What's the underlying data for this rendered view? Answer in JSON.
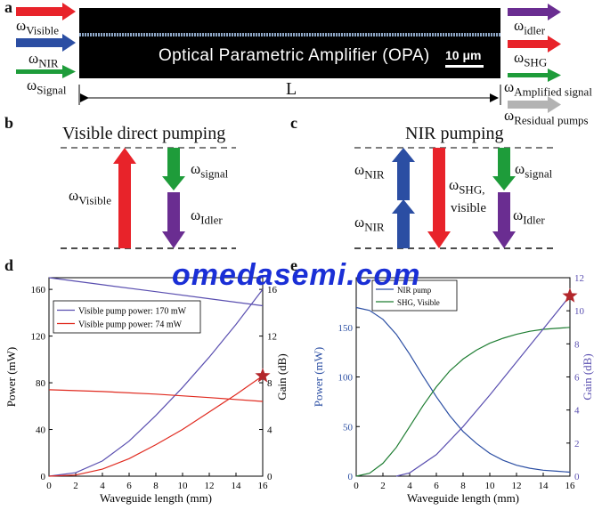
{
  "panel_a": {
    "label": "a",
    "device_text": "Optical Parametric Amplifier (OPA)",
    "scale_bar": "10 μm",
    "length_label": "L",
    "inputs": [
      {
        "base": "ω",
        "sub": "Visible",
        "color": "#e8232a"
      },
      {
        "base": "ω",
        "sub": "NIR",
        "color": "#2b4ea3"
      },
      {
        "base": "ω",
        "sub": "Signal",
        "color": "#1e9c3a"
      }
    ],
    "outputs": [
      {
        "base": "ω",
        "sub": "idler",
        "color": "#6a2d91"
      },
      {
        "base": "ω",
        "sub": "SHG",
        "color": "#e8232a"
      },
      {
        "base": "ω",
        "sub": "Amplified signal",
        "color": "#1e9c3a"
      },
      {
        "base": "ω",
        "sub": "Residual pumps",
        "color": "#b3b3b3"
      }
    ]
  },
  "panel_b": {
    "label": "b",
    "title": "Visible direct pumping",
    "labels": [
      {
        "base": "ω",
        "sub": "Visible"
      },
      {
        "base": "ω",
        "sub": "signal"
      },
      {
        "base": "ω",
        "sub": "Idler"
      }
    ]
  },
  "panel_c": {
    "label": "c",
    "title": "NIR pumping",
    "labels": [
      {
        "base": "ω",
        "sub": "NIR"
      },
      {
        "base": "ω",
        "sub": "NIR"
      },
      {
        "base": "ω",
        "sub": "SHG,",
        "extra": "visible"
      },
      {
        "base": "ω",
        "sub": "signal"
      },
      {
        "base": "ω",
        "sub": "Idler"
      }
    ]
  },
  "watermark": "omedasemi.com",
  "colors": {
    "red": "#e8232a",
    "blue": "#2b4ea3",
    "green": "#1e9c3a",
    "purple": "#6a2d91",
    "gray": "#b3b3b3",
    "chart_purple": "#5a4fb0",
    "chart_red": "#e02a1f",
    "chart_green": "#1e7d32",
    "watermark": "#1a2fd6"
  },
  "chart_data": [
    {
      "panel": "d",
      "type": "line",
      "xlabel": "Waveguide length (mm)",
      "ylabel": "Power (mW)",
      "y2label": "Gain (dB)",
      "xlim": [
        0,
        16
      ],
      "ylim": [
        0,
        170
      ],
      "y2lim": [
        0,
        17
      ],
      "xticks": [
        0,
        2,
        4,
        6,
        8,
        10,
        12,
        14,
        16
      ],
      "yticks": [
        0,
        40,
        80,
        120,
        160
      ],
      "y2ticks": [
        0,
        4,
        8,
        12,
        16
      ],
      "legend_position": "upper-left",
      "legend": [
        "Visible pump power: 170 mW",
        "Visible pump power: 74 mW"
      ],
      "series": [
        {
          "name": "Visible pump power: 170 mW",
          "axis": "left",
          "color": "#5a4fb0",
          "x": [
            0,
            4,
            8,
            12,
            16
          ],
          "y": [
            170,
            164,
            158,
            152,
            146
          ]
        },
        {
          "name": "Visible pump power: 170 mW",
          "axis": "right",
          "color": "#5a4fb0",
          "x": [
            0,
            2,
            4,
            6,
            8,
            10,
            12,
            14,
            16
          ],
          "y": [
            0,
            0.3,
            1.3,
            3.0,
            5.2,
            7.6,
            10.2,
            13.0,
            16.0
          ]
        },
        {
          "name": "Visible pump power: 74 mW",
          "axis": "left",
          "color": "#e02a1f",
          "x": [
            0,
            4,
            8,
            12,
            16
          ],
          "y": [
            74,
            72.5,
            70.3,
            67.3,
            64
          ]
        },
        {
          "name": "Visible pump power: 74 mW",
          "axis": "right",
          "color": "#e02a1f",
          "x": [
            0,
            2,
            4,
            6,
            8,
            10,
            12,
            14,
            16
          ],
          "y": [
            0,
            0.1,
            0.6,
            1.5,
            2.7,
            4.0,
            5.5,
            7.0,
            8.6
          ]
        }
      ],
      "marker": {
        "shape": "star",
        "x": 16,
        "y": 8.6,
        "axis": "right",
        "color": "#b3262b"
      }
    },
    {
      "panel": "e",
      "type": "line",
      "xlabel": "Waveguide length (mm)",
      "ylabel": "Power (mW)",
      "y2label": "Gain (dB)",
      "xlim": [
        0,
        16
      ],
      "ylim": [
        0,
        200
      ],
      "y2lim": [
        0,
        12
      ],
      "xticks": [
        0,
        2,
        4,
        6,
        8,
        10,
        12,
        14,
        16
      ],
      "yticks": [
        0,
        50,
        100,
        150
      ],
      "y2ticks": [
        0,
        2,
        4,
        6,
        8,
        10,
        12
      ],
      "legend_position": "upper-left",
      "legend": [
        "NIR pump",
        "SHG, Visible"
      ],
      "series": [
        {
          "name": "NIR pump",
          "axis": "left",
          "color": "#2b4ea3",
          "x": [
            0,
            1,
            2,
            3,
            4,
            5,
            6,
            7,
            8,
            9,
            10,
            11,
            12,
            13,
            14,
            15,
            16
          ],
          "y": [
            170,
            167,
            158,
            143,
            123,
            101,
            80,
            61,
            45,
            33,
            23,
            16,
            11,
            8,
            6,
            5,
            4
          ]
        },
        {
          "name": "SHG, Visible",
          "axis": "left",
          "color": "#1e7d32",
          "x": [
            0,
            1,
            2,
            3,
            4,
            5,
            6,
            7,
            8,
            9,
            10,
            11,
            12,
            13,
            14,
            15,
            16
          ],
          "y": [
            0,
            3,
            13,
            29,
            50,
            71,
            90,
            106,
            118,
            127,
            134,
            139,
            143,
            146,
            148,
            149,
            150
          ]
        },
        {
          "name": "Gain",
          "axis": "right",
          "color": "#5a4fb0",
          "x": [
            3,
            4,
            6,
            8,
            10,
            12,
            14,
            16
          ],
          "y": [
            0,
            0.2,
            1.3,
            3.0,
            4.9,
            6.9,
            8.9,
            10.9
          ]
        }
      ],
      "marker": {
        "shape": "star",
        "x": 16,
        "y": 10.9,
        "axis": "right",
        "color": "#b3262b"
      }
    }
  ]
}
